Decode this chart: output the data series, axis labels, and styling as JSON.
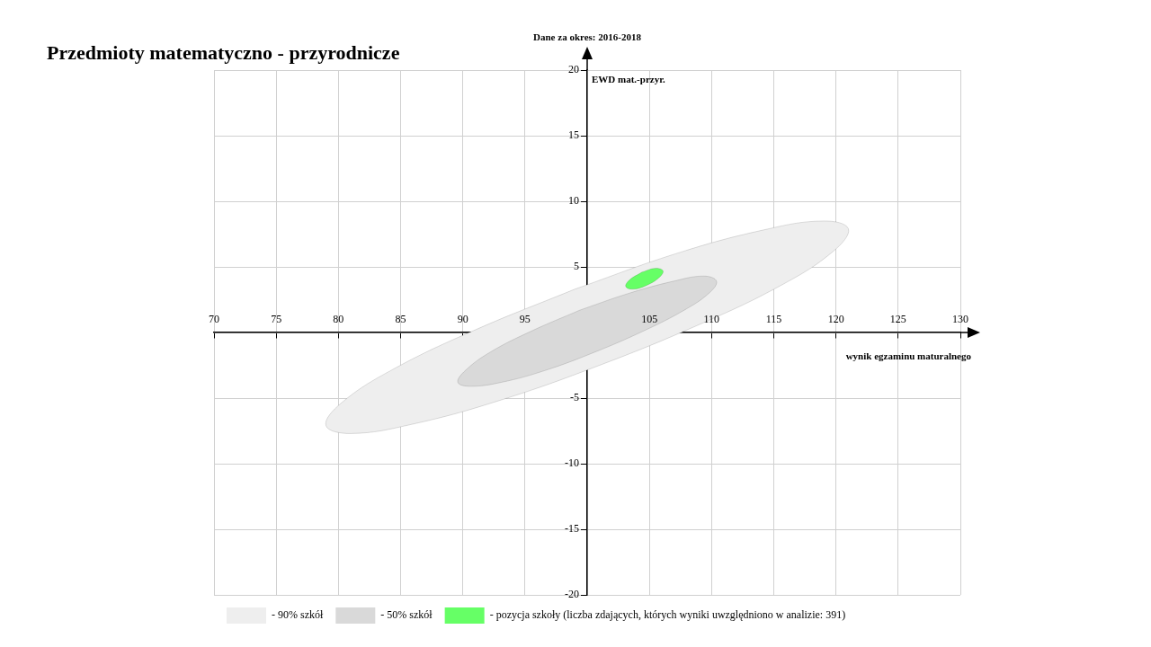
{
  "chart_data": {
    "type": "area",
    "title": "Przedmioty matematyczno - przyrodnicze",
    "xlabel": "wynik egzaminu maturalnego",
    "ylabel": "EWD mat.-przyr.",
    "annotations": [
      "Dane za okres: 2016-2018"
    ],
    "xlim": [
      70,
      130
    ],
    "xticks": [
      70,
      75,
      80,
      85,
      90,
      95,
      {
        "value": 100,
        "label": null
      },
      105,
      110,
      115,
      120,
      125,
      130
    ],
    "ylim": [
      -20,
      20
    ],
    "yticks": [
      -20,
      -15,
      -10,
      -5,
      {
        "value": 0,
        "label": null
      },
      5,
      10,
      15,
      20
    ],
    "grid": true,
    "legend": "bottom left",
    "marker": "none",
    "series": [
      {
        "name": "- 90% szkół",
        "color": "#eeeeee",
        "x": [
          99,
          91,
          84.4,
          80.2,
          79,
          81,
          85.9,
          92.9,
          101,
          109,
          115.6,
          119.8,
          121,
          119,
          114.1,
          107.1,
          99
        ],
        "values": [
          3.3,
          0.2,
          -2.8,
          -5.4,
          -7.1,
          -7.7,
          -7,
          -5.2,
          -2.5,
          0.6,
          3.6,
          6.2,
          7.9,
          8.5,
          7.8,
          6,
          3.3
        ]
      },
      {
        "name": "- 50% szkół",
        "color": "#d9d9d9",
        "x": [
          99.4,
          95.5,
          92.2,
          90.2,
          89.6,
          90.6,
          93.1,
          96.6,
          100.6,
          104.5,
          107.8,
          109.8,
          110.4,
          109.4,
          106.9,
          103.4,
          99.4
        ],
        "values": [
          1.7,
          0.1,
          -1.5,
          -2.9,
          -3.8,
          -4.1,
          -3.8,
          -2.9,
          -1.5,
          0.1,
          1.7,
          3,
          3.9,
          4.3,
          3.9,
          3,
          1.7
        ]
      },
      {
        "name": "- pozycja szkoły (liczba zdających, których wyniki uwzględniono w analizie: 391)",
        "color": "#66ff66",
        "x": [
          104.4,
          103.4,
          103.1,
          103.7,
          104.8,
          105.8,
          106.1,
          105.5,
          104.4
        ],
        "values": [
          4.6,
          4,
          3.5,
          3.3,
          3.6,
          4.2,
          4.7,
          4.9,
          4.6
        ]
      }
    ]
  }
}
